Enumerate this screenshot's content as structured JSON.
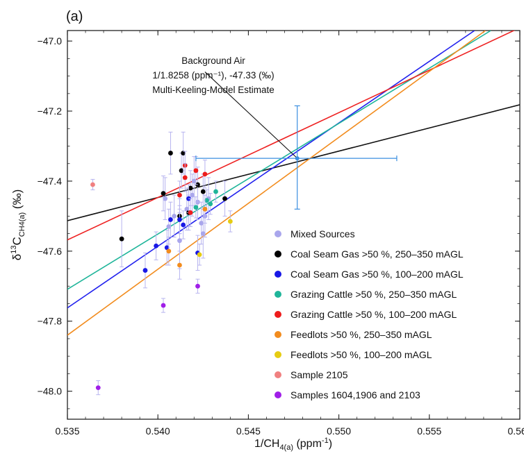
{
  "panel_label": "(a)",
  "chart_data": {
    "type": "scatter",
    "xlabel": {
      "main": "1/CH",
      "sub": "4(a)",
      "unit_pre": " (ppm",
      "unit_sup": "-1",
      "unit_post": ")"
    },
    "ylabel": {
      "pre": "δ",
      "sup": "13",
      "main": "C",
      "sub": "CH4(a)",
      "post": " (‰)"
    },
    "xlim": [
      0.535,
      0.56
    ],
    "ylim": [
      -48.08,
      -46.97
    ],
    "xticks": [
      0.535,
      0.54,
      0.545,
      0.55,
      0.555,
      0.56
    ],
    "xtick_labels": [
      "0.535",
      "0.540",
      "0.545",
      "0.550",
      "0.555",
      "0.560"
    ],
    "yticks": [
      -48.0,
      -47.8,
      -47.6,
      -47.4,
      -47.2,
      -47.0
    ],
    "ytick_labels": [
      "−48.0",
      "−47.8",
      "−47.6",
      "−47.4",
      "−47.2",
      "−47.0"
    ],
    "grid": false,
    "legend_position": "bottom-right",
    "annotation": {
      "lines": [
        "Background Air",
        "1/1.8258 (ppm⁻¹), -47.33 (‰)",
        "Multi-Keeling-Model Estimate"
      ],
      "target": [
        0.5477,
        -47.335
      ],
      "text_anchor": [
        0.5426,
        -47.1
      ]
    },
    "background_air": {
      "x": 0.5477,
      "y": -47.335,
      "xerr_lo": 0.5421,
      "xerr_hi": 0.5532,
      "yerr_lo": -47.48,
      "yerr_hi": -47.185,
      "color": "#3a8ee0"
    },
    "lines": [
      {
        "color": "#111111",
        "x1": 0.535,
        "y1": -47.513,
        "x2": 0.56,
        "y2": -47.182
      },
      {
        "color": "#2222ee",
        "x1": 0.535,
        "y1": -47.762,
        "x2": 0.5575,
        "y2": -46.97
      },
      {
        "color": "#1fb59a",
        "x1": 0.535,
        "y1": -47.709,
        "x2": 0.5584,
        "y2": -46.97
      },
      {
        "color": "#ee2222",
        "x1": 0.535,
        "y1": -47.568,
        "x2": 0.56,
        "y2": -46.962
      },
      {
        "color": "#f28c1e",
        "x1": 0.535,
        "y1": -47.84,
        "x2": 0.5581,
        "y2": -46.97
      }
    ],
    "series": [
      {
        "name": "Mixed Sources",
        "color": "#a9a6ec",
        "points": [
          {
            "x": 0.5406,
            "y": -47.53,
            "yerr": 0.05
          },
          {
            "x": 0.5409,
            "y": -47.5,
            "yerr": 0.06
          },
          {
            "x": 0.5412,
            "y": -47.57,
            "yerr": 0.08
          },
          {
            "x": 0.5416,
            "y": -47.48,
            "yerr": 0.06
          },
          {
            "x": 0.5419,
            "y": -47.44,
            "yerr": 0.06
          },
          {
            "x": 0.5422,
            "y": -47.46,
            "yerr": 0.05
          },
          {
            "x": 0.5424,
            "y": -47.52,
            "yerr": 0.06
          },
          {
            "x": 0.5425,
            "y": -47.55,
            "yerr": 0.07
          },
          {
            "x": 0.5428,
            "y": -47.45,
            "yerr": 0.06
          },
          {
            "x": 0.5404,
            "y": -47.45,
            "yerr": 0.06
          },
          {
            "x": 0.542,
            "y": -47.4,
            "yerr": 0.07
          },
          {
            "x": 0.5426,
            "y": -47.5,
            "yerr": 0.06
          }
        ]
      },
      {
        "name": "Coal Seam Gas >50 %, 250–350 mAGL",
        "color": "#000000",
        "points": [
          {
            "x": 0.538,
            "y": -47.565,
            "yerr": 0.08
          },
          {
            "x": 0.5403,
            "y": -47.435,
            "yerr": 0.05
          },
          {
            "x": 0.5407,
            "y": -47.32,
            "yerr": 0.06
          },
          {
            "x": 0.5413,
            "y": -47.37,
            "yerr": 0.05
          },
          {
            "x": 0.5414,
            "y": -47.32,
            "yerr": 0.06
          },
          {
            "x": 0.5418,
            "y": -47.42,
            "yerr": 0.05
          },
          {
            "x": 0.5422,
            "y": -47.41,
            "yerr": 0.05
          },
          {
            "x": 0.5425,
            "y": -47.43,
            "yerr": 0.05
          },
          {
            "x": 0.5412,
            "y": -47.5,
            "yerr": 0.05
          },
          {
            "x": 0.5417,
            "y": -47.49,
            "yerr": 0.05
          },
          {
            "x": 0.5437,
            "y": -47.45,
            "yerr": 0.05
          }
        ]
      },
      {
        "name": "Coal Seam Gas >50 %, 100–200 mAGL",
        "color": "#1818e6",
        "points": [
          {
            "x": 0.5393,
            "y": -47.655,
            "yerr": 0.05
          },
          {
            "x": 0.5399,
            "y": -47.585,
            "yerr": 0.04
          },
          {
            "x": 0.5405,
            "y": -47.59,
            "yerr": 0.05
          },
          {
            "x": 0.5407,
            "y": -47.51,
            "yerr": 0.05
          },
          {
            "x": 0.5412,
            "y": -47.51,
            "yerr": 0.04
          },
          {
            "x": 0.5414,
            "y": -47.525,
            "yerr": 0.04
          },
          {
            "x": 0.5417,
            "y": -47.45,
            "yerr": 0.04
          },
          {
            "x": 0.5422,
            "y": -47.605,
            "yerr": 0.05
          }
        ]
      },
      {
        "name": "Grazing Cattle >50 %, 250–350 mAGL",
        "color": "#1fb59a",
        "points": [
          {
            "x": 0.5421,
            "y": -47.475,
            "yerr": 0.03
          },
          {
            "x": 0.5427,
            "y": -47.455,
            "yerr": 0.03
          },
          {
            "x": 0.5429,
            "y": -47.465,
            "yerr": 0.03
          },
          {
            "x": 0.5432,
            "y": -47.43,
            "yerr": 0.03
          }
        ]
      },
      {
        "name": "Grazing Cattle >50 %, 100–200 mAGL",
        "color": "#ee1c1c",
        "points": [
          {
            "x": 0.5412,
            "y": -47.44,
            "yerr": 0.04
          },
          {
            "x": 0.5415,
            "y": -47.355,
            "yerr": 0.04
          },
          {
            "x": 0.5415,
            "y": -47.39,
            "yerr": 0.04
          },
          {
            "x": 0.5418,
            "y": -47.49,
            "yerr": 0.04
          },
          {
            "x": 0.5421,
            "y": -47.37,
            "yerr": 0.04
          },
          {
            "x": 0.5426,
            "y": -47.38,
            "yerr": 0.04
          }
        ]
      },
      {
        "name": "Feedlots >50 %, 250–350 mAGL",
        "color": "#f28c1e",
        "points": [
          {
            "x": 0.5406,
            "y": -47.6,
            "yerr": 0.04
          },
          {
            "x": 0.5412,
            "y": -47.64,
            "yerr": 0.04
          },
          {
            "x": 0.5426,
            "y": -47.48,
            "yerr": 0.04
          }
        ]
      },
      {
        "name": "Feedlots >50 %, 100–200 mAGL",
        "color": "#e6cc12",
        "points": [
          {
            "x": 0.544,
            "y": -47.515,
            "yerr": 0.03
          },
          {
            "x": 0.5423,
            "y": -47.61,
            "yerr": 0.03
          }
        ]
      },
      {
        "name": "Sample 2105",
        "color": "#f08080",
        "points": [
          {
            "x": 0.5364,
            "y": -47.41,
            "yerr": 0.015,
            "xerr": 0.00012
          }
        ]
      },
      {
        "name": "Samples 1604,1906 and 2103",
        "color": "#a01ee8",
        "points": [
          {
            "x": 0.5367,
            "y": -47.99,
            "yerr": 0.02
          },
          {
            "x": 0.5403,
            "y": -47.755,
            "yerr": 0.02
          },
          {
            "x": 0.5422,
            "y": -47.7,
            "yerr": 0.02
          }
        ]
      }
    ]
  }
}
